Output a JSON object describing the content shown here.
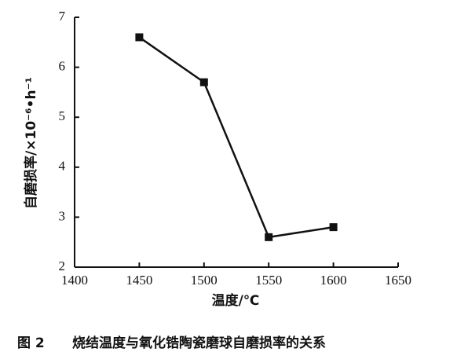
{
  "chart_data": {
    "type": "line",
    "figure_label": "图 2",
    "title": "烧结温度与氧化锆陶瓷磨球自磨损率的关系",
    "x_label": "温度/℃",
    "y_label": "自磨损率/×10⁻⁶•h⁻¹",
    "x": [
      1450,
      1500,
      1550,
      1600
    ],
    "series": [
      {
        "color": "#111111",
        "values": [
          6.6,
          5.7,
          2.6,
          2.8
        ]
      }
    ],
    "xlim": [
      1400,
      1650
    ],
    "xticks": [
      1400,
      1450,
      1500,
      1550,
      1600,
      1650
    ],
    "ylim": [
      2,
      7
    ],
    "yticks": [
      2,
      3,
      4,
      5,
      6,
      7
    ],
    "grid": false
  }
}
